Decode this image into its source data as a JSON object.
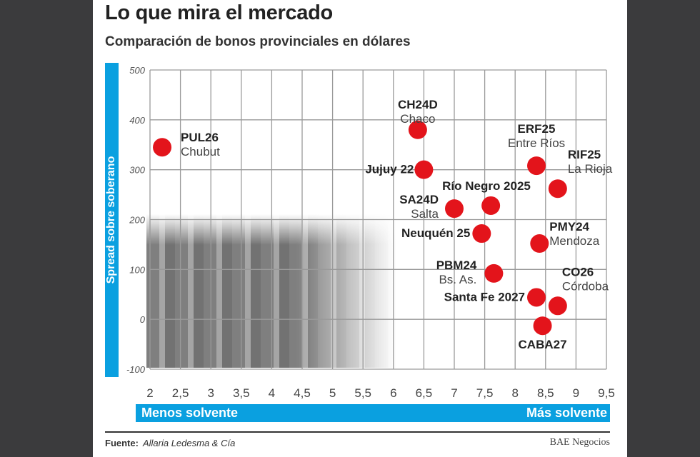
{
  "header": {
    "title": "Lo que mira el mercado",
    "subtitle": "Comparación de bonos provinciales en dólares"
  },
  "footer": {
    "source_label": "Fuente:",
    "source": "Allaria Ledesma & Cía",
    "brand": "BAE Negocios"
  },
  "colors": {
    "accent": "#0aa0e0",
    "point": "#e3141b",
    "grid": "#9a9a9a"
  },
  "chart_data": {
    "type": "scatter",
    "title": "Lo que mira el mercado",
    "subtitle": "Comparación de bonos provinciales en dólares",
    "ylabel": "Spread sobre soberano",
    "xlabel_left": "Menos solvente",
    "xlabel_right": "Más solvente",
    "xlim": [
      2,
      9.5
    ],
    "ylim": [
      -100,
      500
    ],
    "x_ticks": [
      "2",
      "2,5",
      "3",
      "3,5",
      "4",
      "4,5",
      "5",
      "5,5",
      "6",
      "6,5",
      "7",
      "7,5",
      "8",
      "8,5",
      "9",
      "9,5"
    ],
    "y_ticks": [
      "500",
      "400",
      "300",
      "200",
      "100",
      "0",
      "-100"
    ],
    "grid": true,
    "points": [
      {
        "code": "PUL26",
        "province": "Chubut",
        "x": 2.2,
        "y": 345
      },
      {
        "code": "CH24D",
        "province": "Chaco",
        "x": 6.4,
        "y": 380
      },
      {
        "code": "Jujuy 22",
        "province": "",
        "x": 6.5,
        "y": 300
      },
      {
        "code": "ERF25",
        "province": "Entre Ríos",
        "x": 8.35,
        "y": 308
      },
      {
        "code": "RIF25",
        "province": "La Rioja",
        "x": 8.7,
        "y": 262
      },
      {
        "code": "Río Negro 2025",
        "province": "",
        "x": 7.6,
        "y": 228
      },
      {
        "code": "SA24D",
        "province": "Salta",
        "x": 7.0,
        "y": 222
      },
      {
        "code": "Neuquén 25",
        "province": "",
        "x": 7.45,
        "y": 172
      },
      {
        "code": "PMY24",
        "province": "Mendoza",
        "x": 8.4,
        "y": 152
      },
      {
        "code": "PBM24",
        "province": "Bs. As.",
        "x": 7.65,
        "y": 92
      },
      {
        "code": "Santa Fe 2027",
        "province": "",
        "x": 8.35,
        "y": 44
      },
      {
        "code": "CO26",
        "province": "Córdoba",
        "x": 8.7,
        "y": 27
      },
      {
        "code": "CABA27",
        "province": "",
        "x": 8.45,
        "y": -13
      }
    ]
  }
}
